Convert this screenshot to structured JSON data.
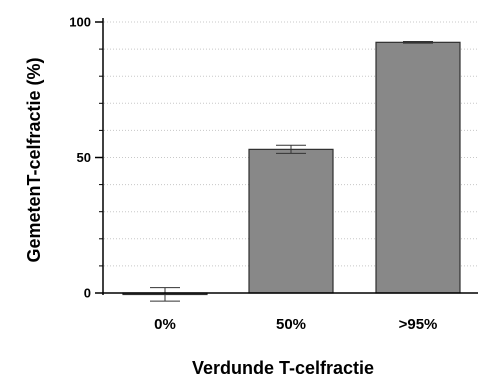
{
  "chart_data": {
    "type": "bar",
    "title": "",
    "xlabel": "Verdunde T-celfractie",
    "ylabel": "GemetenT-celfractie (%)",
    "categories": [
      "0%",
      "50%",
      ">95%"
    ],
    "values": [
      -0.5,
      53,
      92.5
    ],
    "error": [
      2.5,
      1.5,
      0.3
    ],
    "ylim": [
      0,
      100
    ],
    "yticks": [
      0,
      50,
      100
    ],
    "grid": "horizontal dotted",
    "legend": "none",
    "bar_color": "#888888",
    "bar_edge_color": "#2f2f2f"
  }
}
